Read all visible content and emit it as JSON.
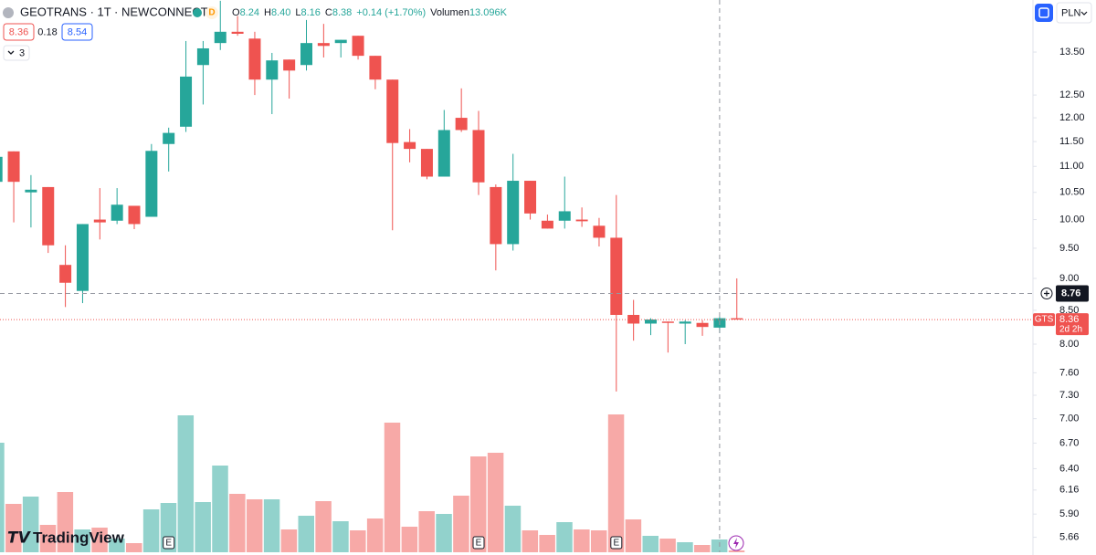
{
  "chart_data": {
    "type": "candlestick",
    "symbol": "GEOTRANS · 1T · NEWCONNECT",
    "interval_badge": "D",
    "legend": [
      {
        "key": "O",
        "value": "8.24"
      },
      {
        "key": "H",
        "value": "8.40"
      },
      {
        "key": "L",
        "value": "8.16"
      },
      {
        "key": "C",
        "value": "8.38"
      }
    ],
    "change": "+0.14 (+1.70%)",
    "volume_label": "Volumen",
    "volume_value": "13.096K",
    "bid": "8.36",
    "spread": "0.18",
    "ask": "8.54",
    "indicators_count": "3",
    "currency": "PLN",
    "brand": "TradingView",
    "up_color": "#26a69a",
    "down_color": "#ef5350",
    "log_scale": true,
    "open": [
      10.7,
      11.3,
      10.5,
      10.6,
      9.22,
      8.8,
      10.0,
      9.98,
      10.25,
      10.05,
      11.45,
      11.81,
      13.19,
      13.72,
      14.0,
      13.83,
      12.85,
      13.32,
      13.19,
      13.72,
      13.72,
      13.9,
      13.41,
      12.85,
      11.49,
      11.35,
      10.8,
      12.0,
      11.74,
      10.6,
      9.57,
      10.72,
      9.98,
      9.98,
      10.0,
      9.89,
      9.68,
      8.43,
      8.3,
      8.33,
      8.3,
      8.31,
      8.24,
      8.38
    ],
    "high": [
      11.19,
      11.3,
      10.83,
      10.6,
      9.55,
      9.92,
      10.58,
      10.58,
      10.25,
      11.45,
      11.79,
      13.77,
      13.77,
      14.8,
      14.4,
      14.0,
      13.48,
      13.32,
      14.3,
      14.2,
      13.8,
      13.9,
      13.41,
      12.85,
      11.76,
      11.35,
      12.17,
      12.65,
      12.15,
      10.65,
      11.25,
      10.72,
      10.09,
      10.8,
      10.22,
      10.03,
      10.45,
      8.66,
      8.38,
      8.33,
      8.35,
      8.35,
      8.4,
      9.0
    ],
    "low": [
      10.02,
      9.95,
      9.86,
      9.42,
      8.55,
      8.61,
      9.65,
      9.92,
      9.83,
      10.05,
      10.9,
      11.7,
      12.29,
      13.55,
      13.9,
      12.5,
      12.08,
      12.42,
      13.06,
      13.37,
      13.37,
      13.32,
      12.63,
      9.81,
      11.08,
      10.75,
      10.8,
      11.7,
      10.45,
      9.13,
      9.46,
      10.0,
      9.84,
      9.84,
      9.87,
      9.53,
      7.35,
      8.05,
      8.13,
      7.88,
      8.0,
      8.12,
      8.16,
      8.36
    ],
    "close": [
      11.19,
      10.7,
      10.55,
      9.55,
      8.93,
      9.92,
      9.95,
      10.27,
      9.92,
      11.31,
      11.68,
      12.92,
      13.59,
      14.0,
      13.95,
      12.85,
      13.3,
      13.06,
      13.72,
      13.65,
      13.8,
      13.41,
      12.85,
      11.47,
      11.35,
      10.8,
      11.74,
      11.74,
      10.69,
      9.57,
      10.72,
      10.11,
      9.84,
      10.15,
      9.97,
      9.68,
      8.43,
      8.3,
      8.36,
      8.31,
      8.33,
      8.25,
      8.38,
      8.36
    ],
    "volume": [
      112200,
      49555,
      57035,
      28050,
      61710,
      23375,
      25245,
      14025,
      9350,
      43945,
      50490,
      140250,
      51425,
      88825,
      59840,
      54230,
      54230,
      23375,
      37400,
      52360,
      31790,
      22440,
      34595,
      132770,
      26180,
      42075,
      39270,
      57970,
      98175,
      101915,
      47685,
      22440,
      17765,
      30855,
      23375,
      22440,
      141185,
      33660,
      16830,
      14025,
      10285,
      7480,
      13096,
      1870
    ],
    "events": [
      {
        "candle": 10,
        "label": "E"
      },
      {
        "candle": 28,
        "label": "E"
      },
      {
        "candle": 36,
        "label": "E"
      }
    ],
    "ylim": [
      5.51,
      14.82
    ],
    "yticks": [
      {
        "value": 13.5,
        "label": "13.50"
      },
      {
        "value": 12.5,
        "label": "12.50"
      },
      {
        "value": 12,
        "label": "12.00"
      },
      {
        "value": 11.5,
        "label": "11.50"
      },
      {
        "value": 11,
        "label": "11.00"
      },
      {
        "value": 10.5,
        "label": "10.50"
      },
      {
        "value": 10,
        "label": "10.00"
      },
      {
        "value": 9.5,
        "label": "9.50"
      },
      {
        "value": 9,
        "label": "9.00"
      },
      {
        "value": 8.5,
        "label": "8.50"
      },
      {
        "value": 8,
        "label": "8.00"
      },
      {
        "value": 7.6,
        "label": "7.60"
      },
      {
        "value": 7.3,
        "label": "7.30"
      },
      {
        "value": 7,
        "label": "7.00"
      },
      {
        "value": 6.7,
        "label": "6.70"
      },
      {
        "value": 6.4,
        "label": "6.40"
      },
      6.16,
      {
        "value": 5.9,
        "label": "5.90"
      },
      5.66
    ],
    "crosshair": {
      "candle": 42,
      "price": 8.76
    },
    "last_price": {
      "ticker": "GTS",
      "price": 8.36,
      "countdown": "2d 2h"
    }
  }
}
